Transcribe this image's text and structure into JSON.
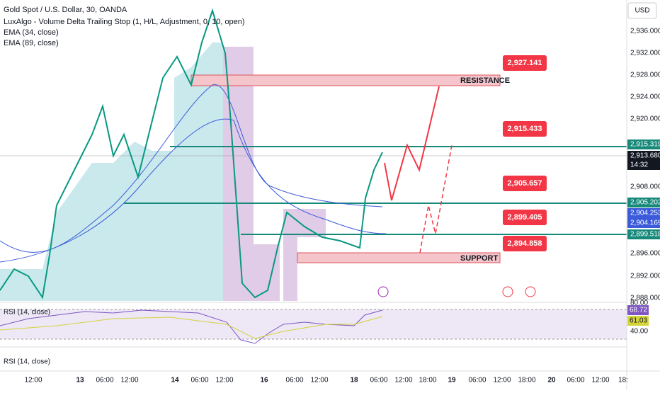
{
  "header": {
    "symbol": "Gold Spot / U.S. Dollar, 30, OANDA",
    "indicators": [
      "LuxAlgo - Volume Delta Trailing Stop (1, H/L, Adjustment, 0, 10, open)",
      "EMA (34, close)",
      "EMA (89, close)"
    ]
  },
  "currency": "USD",
  "price_axis": [
    "2,936.000",
    "2,932.000",
    "2,928.000",
    "2,924.000",
    "2,920.000",
    "2,908.000",
    "2,896.000",
    "2,892.000",
    "2,888.000"
  ],
  "price_tags": [
    "2,915.319",
    "2,913.680",
    "14:32",
    "2,905.202",
    "2,904.253",
    "2,904.169",
    "2,899.518"
  ],
  "callouts": [
    "2,927.141",
    "2,915.433",
    "2,905.657",
    "2,899.405",
    "2,894.858"
  ],
  "zones": [
    "RESISTANCE",
    "SUPPORT"
  ],
  "rsi_pane": {
    "label": "RSI (14, close)",
    "axis": [
      "80.00",
      "40.00"
    ],
    "tags": [
      "68.72",
      "61.03"
    ]
  },
  "rsi_pane_2": {
    "label": "RSI (14, close)"
  },
  "time_axis": [
    "12:00",
    "13",
    "06:00",
    "12:00",
    "14",
    "06:00",
    "12:00",
    "16",
    "06:00",
    "12:00",
    "18",
    "06:00",
    "12:00",
    "18:00",
    "19",
    "06:00",
    "12:00",
    "18:00",
    "20",
    "06:00",
    "12:00",
    "18:"
  ]
}
